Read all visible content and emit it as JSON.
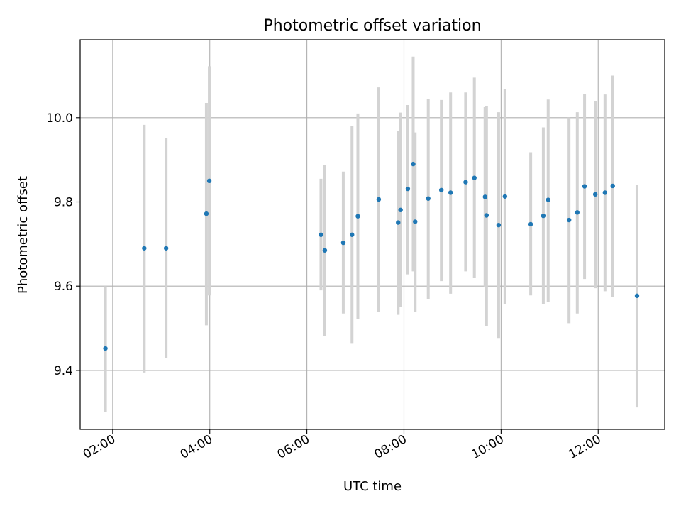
{
  "chart_data": {
    "type": "scatter",
    "title": "Photometric offset variation",
    "xlabel": "UTC time",
    "ylabel": "Photometric offset",
    "x_unit": "hours",
    "xlim": [
      1.33,
      13.37
    ],
    "ylim": [
      9.26,
      10.185
    ],
    "grid": true,
    "x_ticks": [
      {
        "value": 2,
        "label": "02:00"
      },
      {
        "value": 4,
        "label": "04:00"
      },
      {
        "value": 6,
        "label": "06:00"
      },
      {
        "value": 8,
        "label": "08:00"
      },
      {
        "value": 10,
        "label": "10:00"
      },
      {
        "value": 12,
        "label": "12:00"
      }
    ],
    "y_ticks": [
      {
        "value": 9.4,
        "label": "9.4"
      },
      {
        "value": 9.6,
        "label": "9.6"
      },
      {
        "value": 9.8,
        "label": "9.8"
      },
      {
        "value": 10.0,
        "label": "10.0"
      }
    ],
    "colors": {
      "point": "#1f77b4",
      "errorbar": "#d3d3d3",
      "grid": "#b0b0b0"
    },
    "points": [
      {
        "x": 1.85,
        "y": 9.452,
        "err_low": 9.302,
        "err_high": 9.6
      },
      {
        "x": 2.65,
        "y": 9.69,
        "err_low": 9.395,
        "err_high": 9.983
      },
      {
        "x": 3.1,
        "y": 9.69,
        "err_low": 9.43,
        "err_high": 9.952
      },
      {
        "x": 3.93,
        "y": 9.772,
        "err_low": 9.507,
        "err_high": 10.035
      },
      {
        "x": 3.99,
        "y": 9.85,
        "err_low": 9.578,
        "err_high": 10.122
      },
      {
        "x": 6.29,
        "y": 9.722,
        "err_low": 9.59,
        "err_high": 9.855
      },
      {
        "x": 6.37,
        "y": 9.685,
        "err_low": 9.482,
        "err_high": 9.888
      },
      {
        "x": 6.75,
        "y": 9.703,
        "err_low": 9.535,
        "err_high": 9.872
      },
      {
        "x": 6.93,
        "y": 9.722,
        "err_low": 9.465,
        "err_high": 9.98
      },
      {
        "x": 7.05,
        "y": 9.766,
        "err_low": 9.522,
        "err_high": 10.01
      },
      {
        "x": 7.48,
        "y": 9.806,
        "err_low": 9.538,
        "err_high": 10.072
      },
      {
        "x": 7.88,
        "y": 9.751,
        "err_low": 9.532,
        "err_high": 9.968
      },
      {
        "x": 7.93,
        "y": 9.781,
        "err_low": 9.55,
        "err_high": 10.012
      },
      {
        "x": 8.08,
        "y": 9.831,
        "err_low": 9.628,
        "err_high": 10.03
      },
      {
        "x": 8.19,
        "y": 9.89,
        "err_low": 9.635,
        "err_high": 10.145
      },
      {
        "x": 8.23,
        "y": 9.753,
        "err_low": 9.538,
        "err_high": 9.965
      },
      {
        "x": 8.5,
        "y": 9.808,
        "err_low": 9.57,
        "err_high": 10.045
      },
      {
        "x": 8.77,
        "y": 9.828,
        "err_low": 9.612,
        "err_high": 10.042
      },
      {
        "x": 8.96,
        "y": 9.822,
        "err_low": 9.582,
        "err_high": 10.06
      },
      {
        "x": 9.27,
        "y": 9.847,
        "err_low": 9.635,
        "err_high": 10.06
      },
      {
        "x": 9.45,
        "y": 9.857,
        "err_low": 9.62,
        "err_high": 10.095
      },
      {
        "x": 9.67,
        "y": 9.812,
        "err_low": 9.598,
        "err_high": 10.025
      },
      {
        "x": 9.7,
        "y": 9.768,
        "err_low": 9.505,
        "err_high": 10.028
      },
      {
        "x": 9.95,
        "y": 9.745,
        "err_low": 9.477,
        "err_high": 10.013
      },
      {
        "x": 10.08,
        "y": 9.813,
        "err_low": 9.558,
        "err_high": 10.068
      },
      {
        "x": 10.61,
        "y": 9.747,
        "err_low": 9.578,
        "err_high": 9.918
      },
      {
        "x": 10.87,
        "y": 9.767,
        "err_low": 9.557,
        "err_high": 9.977
      },
      {
        "x": 10.97,
        "y": 9.805,
        "err_low": 9.562,
        "err_high": 10.043
      },
      {
        "x": 11.4,
        "y": 9.757,
        "err_low": 9.512,
        "err_high": 10.0
      },
      {
        "x": 11.57,
        "y": 9.775,
        "err_low": 9.535,
        "err_high": 10.013
      },
      {
        "x": 11.72,
        "y": 9.837,
        "err_low": 9.617,
        "err_high": 10.057
      },
      {
        "x": 11.94,
        "y": 9.818,
        "err_low": 9.595,
        "err_high": 10.04
      },
      {
        "x": 12.14,
        "y": 9.822,
        "err_low": 9.588,
        "err_high": 10.055
      },
      {
        "x": 12.3,
        "y": 9.838,
        "err_low": 9.575,
        "err_high": 10.1
      },
      {
        "x": 12.8,
        "y": 9.577,
        "err_low": 9.312,
        "err_high": 9.84
      }
    ]
  }
}
